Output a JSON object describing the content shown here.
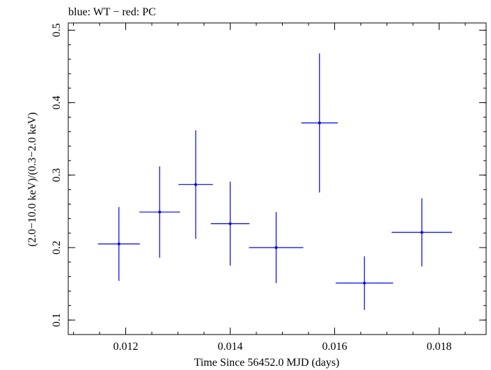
{
  "chart_data": {
    "type": "scatter",
    "title": "blue: WT − red: PC",
    "xlabel": "Time Since 56452.0 MJD (days)",
    "ylabel": "(2.0−10.0 keV)/(0.3−2.0 keV)",
    "xlim": [
      0.0109,
      0.0189
    ],
    "ylim": [
      0.08,
      0.51
    ],
    "x_ticks": [
      {
        "value": 0.012,
        "label": "0.012"
      },
      {
        "value": 0.014,
        "label": "0.014"
      },
      {
        "value": 0.016,
        "label": "0.016"
      },
      {
        "value": 0.018,
        "label": "0.018"
      }
    ],
    "y_ticks": [
      {
        "value": 0.1,
        "label": "0.1"
      },
      {
        "value": 0.2,
        "label": "0.2"
      },
      {
        "value": 0.3,
        "label": "0.3"
      },
      {
        "value": 0.4,
        "label": "0.4"
      },
      {
        "value": 0.5,
        "label": "0.5"
      }
    ],
    "grid": false,
    "colors": {
      "WT": "#0000ee",
      "PC": "#ee0000",
      "axes": "#000000"
    },
    "series": [
      {
        "name": "WT",
        "points": [
          {
            "x": 0.01187,
            "y": 0.205,
            "xerr_lo": 0.0004,
            "xerr_hi": 0.0004,
            "yerr_lo": 0.051,
            "yerr_hi": 0.051
          },
          {
            "x": 0.01265,
            "y": 0.249,
            "xerr_lo": 0.00039,
            "xerr_hi": 0.00039,
            "yerr_lo": 0.063,
            "yerr_hi": 0.063
          },
          {
            "x": 0.01334,
            "y": 0.287,
            "xerr_lo": 0.00033,
            "xerr_hi": 0.00033,
            "yerr_lo": 0.075,
            "yerr_hi": 0.075
          },
          {
            "x": 0.014,
            "y": 0.233,
            "xerr_lo": 0.00037,
            "xerr_hi": 0.00037,
            "yerr_lo": 0.058,
            "yerr_hi": 0.058
          },
          {
            "x": 0.01488,
            "y": 0.2,
            "xerr_lo": 0.00052,
            "xerr_hi": 0.00052,
            "yerr_lo": 0.049,
            "yerr_hi": 0.049
          },
          {
            "x": 0.01571,
            "y": 0.372,
            "xerr_lo": 0.00035,
            "xerr_hi": 0.00035,
            "yerr_lo": 0.096,
            "yerr_hi": 0.096
          },
          {
            "x": 0.01657,
            "y": 0.151,
            "xerr_lo": 0.00055,
            "xerr_hi": 0.00055,
            "yerr_lo": 0.037,
            "yerr_hi": 0.037
          },
          {
            "x": 0.01767,
            "y": 0.221,
            "xerr_lo": 0.00058,
            "xerr_hi": 0.00058,
            "yerr_lo": 0.047,
            "yerr_hi": 0.047
          }
        ]
      }
    ]
  }
}
